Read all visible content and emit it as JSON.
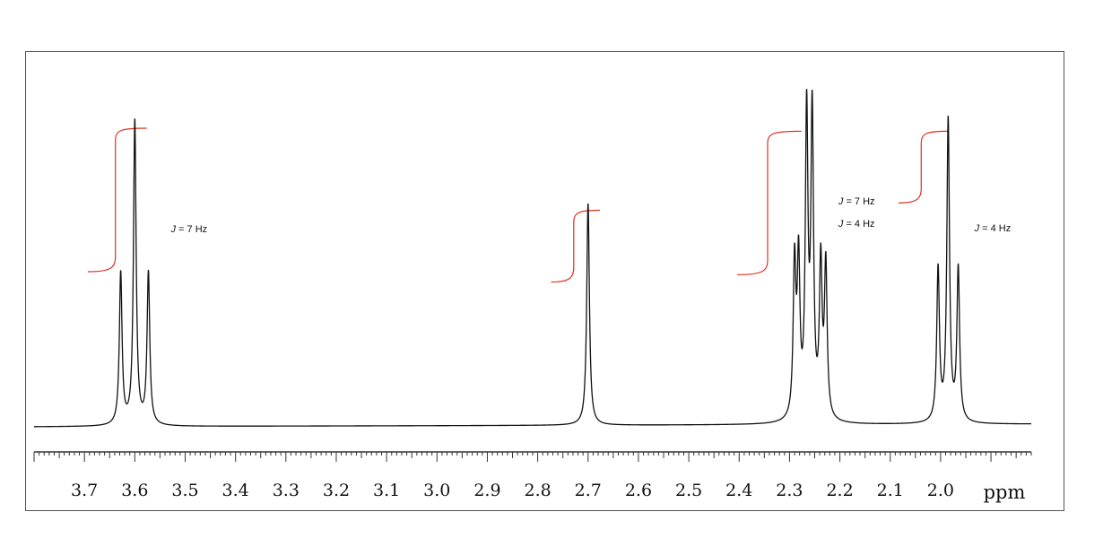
{
  "chart_data": {
    "type": "line",
    "title": "",
    "xlabel": "ppm",
    "ylabel": "",
    "x_reversed": true,
    "xlim": [
      3.8,
      1.82
    ],
    "ylim": [
      0,
      1.0
    ],
    "grid": false,
    "x_ticks": [
      3.7,
      3.6,
      3.5,
      3.4,
      3.3,
      3.2,
      3.1,
      3.0,
      2.9,
      2.8,
      2.7,
      2.6,
      2.5,
      2.4,
      2.3,
      2.2,
      2.1,
      2.0
    ],
    "x_tick_labels": [
      "3.7",
      "3.6",
      "3.5",
      "3.4",
      "3.3",
      "3.2",
      "3.1",
      "3.0",
      "2.9",
      "2.8",
      "2.7",
      "2.6",
      "2.5",
      "2.4",
      "2.3",
      "2.2",
      "2.1",
      "2.0"
    ],
    "signals": [
      {
        "name": "triplet",
        "multiplicity": "t",
        "lines": [
          {
            "ppm": 3.628,
            "height": 0.5
          },
          {
            "ppm": 3.6,
            "height": 1.0
          },
          {
            "ppm": 3.573,
            "height": 0.5
          }
        ],
        "annotation": [
          "J = 7 Hz"
        ]
      },
      {
        "name": "singlet",
        "multiplicity": "s",
        "lines": [
          {
            "ppm": 2.7,
            "height": 0.73
          }
        ],
        "annotation": []
      },
      {
        "name": "triplet of doublets",
        "multiplicity": "td",
        "lines": [
          {
            "ppm": 2.29,
            "height": 0.5
          },
          {
            "ppm": 2.282,
            "height": 0.5
          },
          {
            "ppm": 2.266,
            "height": 0.99
          },
          {
            "ppm": 2.255,
            "height": 0.99
          },
          {
            "ppm": 2.238,
            "height": 0.5
          },
          {
            "ppm": 2.228,
            "height": 0.5
          }
        ],
        "annotation": [
          "J = 7 Hz",
          "J = 4 Hz"
        ]
      },
      {
        "name": "triplet",
        "multiplicity": "t",
        "lines": [
          {
            "ppm": 2.005,
            "height": 0.5
          },
          {
            "ppm": 1.985,
            "height": 0.99
          },
          {
            "ppm": 1.965,
            "height": 0.5
          }
        ],
        "annotation": [
          "J = 4 Hz"
        ]
      }
    ],
    "integrals": [
      {
        "signal": 0,
        "from_ppm": 3.64,
        "to_ppm": 3.58,
        "relative": 2
      },
      {
        "signal": 1,
        "from_ppm": 2.72,
        "to_ppm": 2.68,
        "relative": 1
      },
      {
        "signal": 2,
        "from_ppm": 2.35,
        "to_ppm": 2.28,
        "relative": 2
      },
      {
        "signal": 3,
        "from_ppm": 2.03,
        "to_ppm": 1.99,
        "relative": 1
      }
    ],
    "colors": {
      "spectrum": "#111111",
      "integral": "#e0301e",
      "axis": "#333333"
    }
  }
}
